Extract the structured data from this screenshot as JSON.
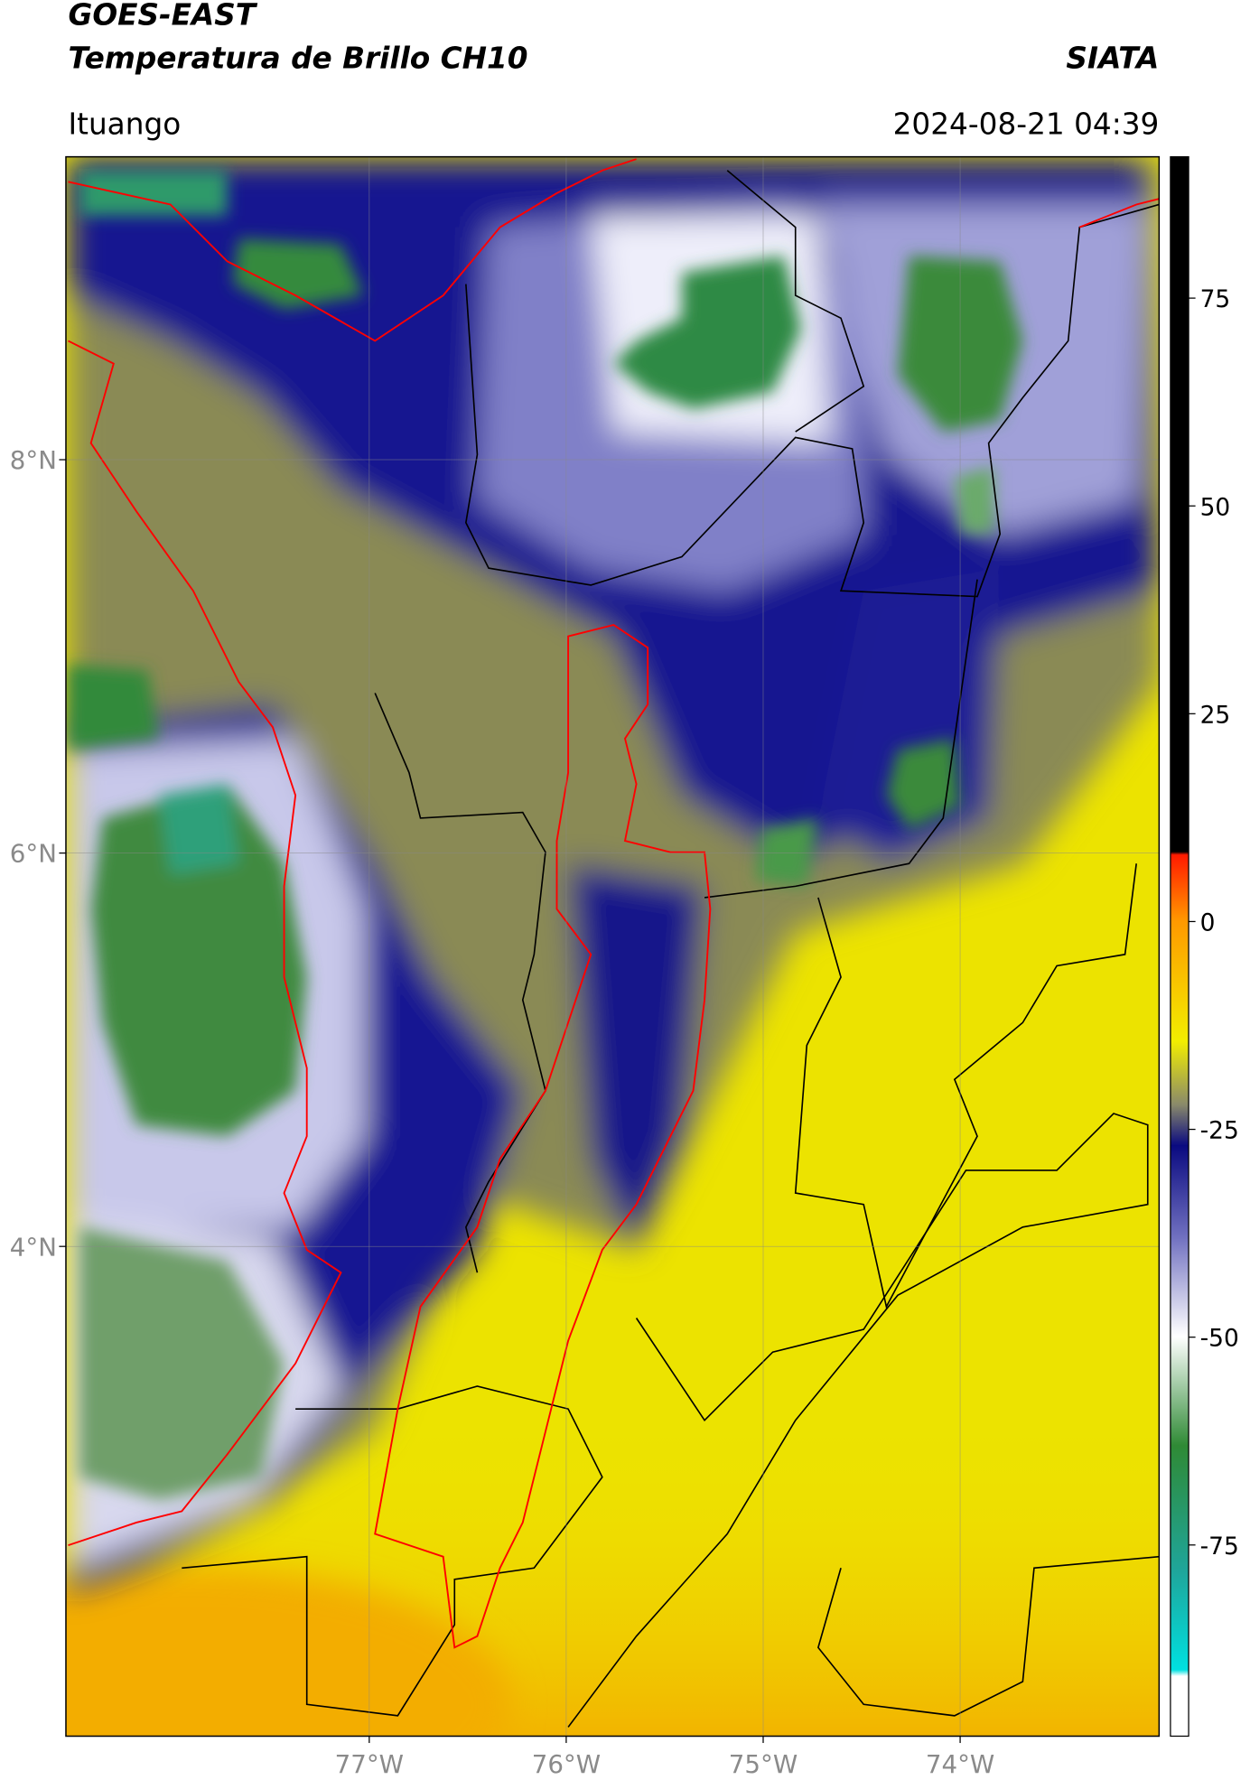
{
  "header": {
    "title": "GOES-EAST",
    "subtitle": "Temperatura de Brillo CH10",
    "org": "SIATA",
    "location": "Ituango",
    "datetime": "2024-08-21 04:39"
  },
  "map": {
    "xlim": [
      -78.54,
      -72.99
    ],
    "ylim": [
      1.51,
      9.54
    ],
    "xticks": [
      {
        "value": -77,
        "label": "77°W"
      },
      {
        "value": -76,
        "label": "76°W"
      },
      {
        "value": -75,
        "label": "75°W"
      },
      {
        "value": -74,
        "label": "74°W"
      }
    ],
    "yticks": [
      {
        "value": 8,
        "label": "8°N"
      },
      {
        "value": 6,
        "label": "6°N"
      },
      {
        "value": 4,
        "label": "4°N"
      }
    ],
    "grid": true
  },
  "colorbar": {
    "lim": [
      -98,
      92
    ],
    "ticks": [
      75,
      50,
      25,
      0,
      -25,
      -50,
      -75
    ]
  }
}
